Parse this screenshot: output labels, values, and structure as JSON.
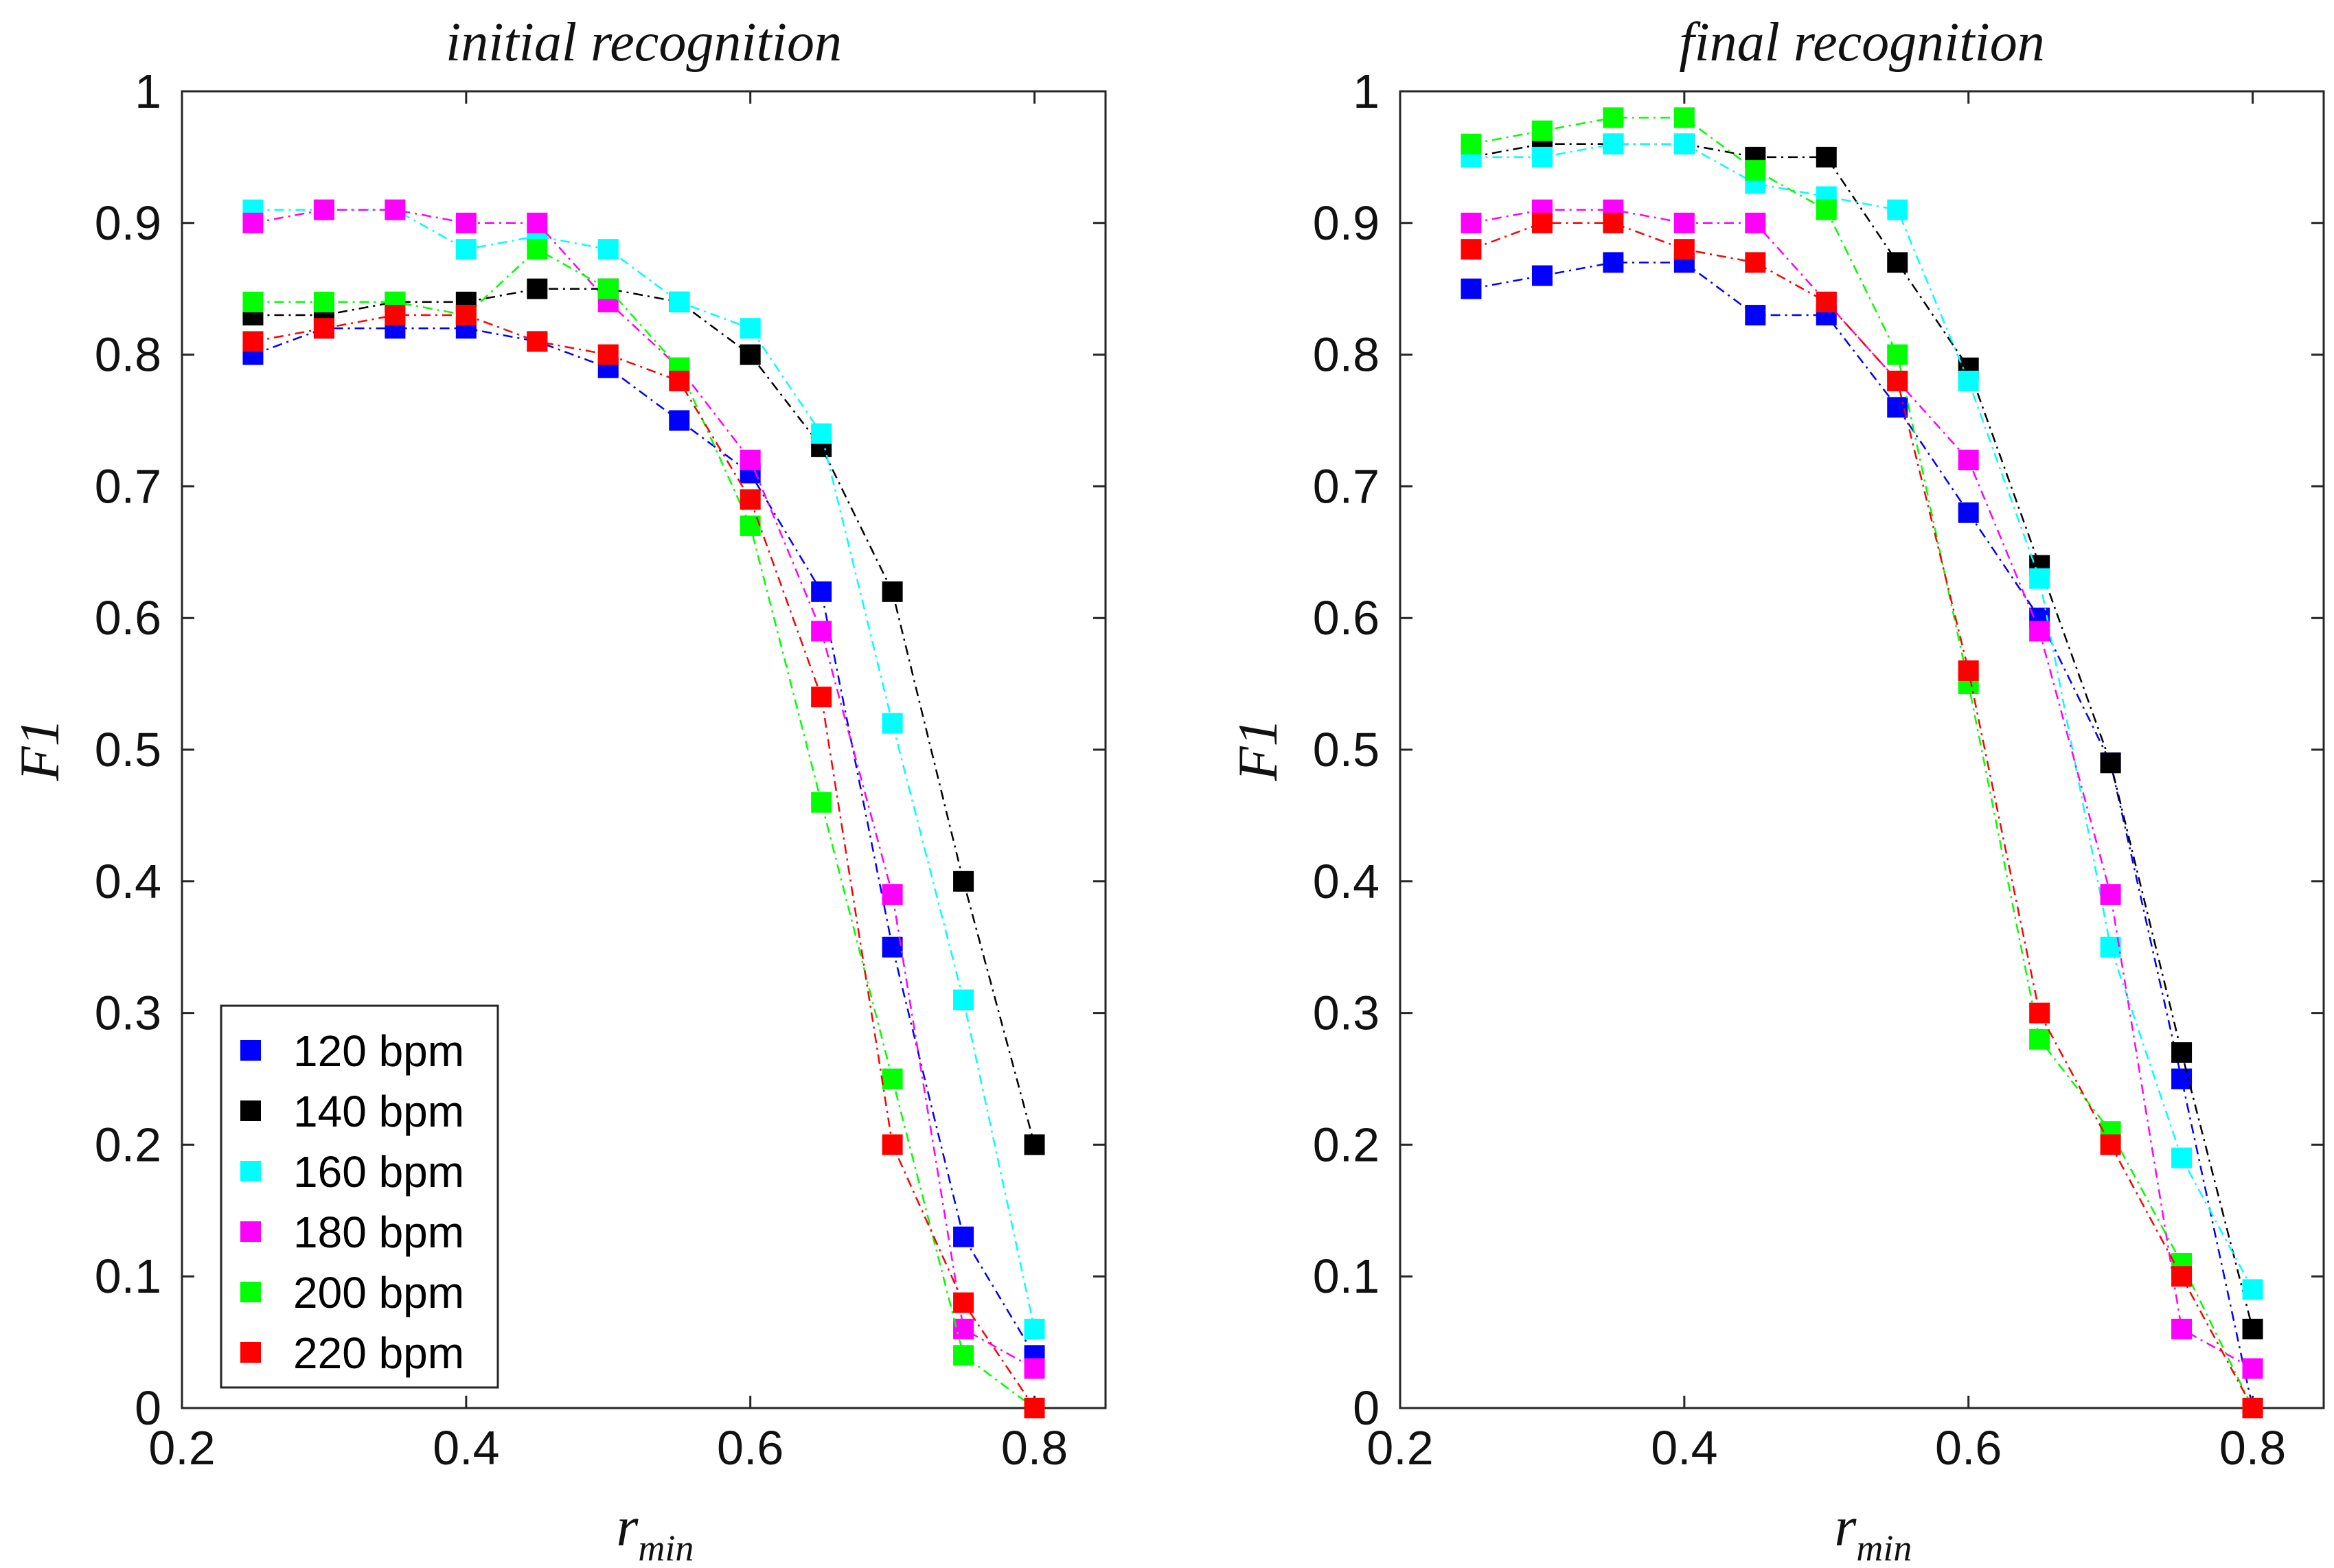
{
  "chart_data": [
    {
      "type": "line",
      "title": "initial recognition",
      "xlabel": "r",
      "xlabel_sub": "min",
      "ylabel": "F1",
      "xlim": [
        0.2,
        0.85
      ],
      "ylim": [
        0,
        1
      ],
      "xticks": [
        "0.2",
        "0.4",
        "0.6",
        "0.8"
      ],
      "yticks": [
        "0",
        "0.1",
        "0.2",
        "0.3",
        "0.4",
        "0.5",
        "0.6",
        "0.7",
        "0.8",
        "0.9",
        "1"
      ],
      "grid": false,
      "legend": "bottom-left",
      "x": [
        0.25,
        0.3,
        0.35,
        0.4,
        0.45,
        0.5,
        0.55,
        0.6,
        0.65,
        0.7,
        0.75,
        0.8
      ],
      "series": [
        {
          "name": "120 bpm",
          "color": "#0000ff",
          "values": [
            0.8,
            0.82,
            0.82,
            0.82,
            0.81,
            0.79,
            0.75,
            0.71,
            0.62,
            0.35,
            0.13,
            0.04
          ]
        },
        {
          "name": "140 bpm",
          "color": "#000000",
          "values": [
            0.83,
            0.83,
            0.84,
            0.84,
            0.85,
            0.85,
            0.84,
            0.8,
            0.73,
            0.62,
            0.4,
            0.2
          ]
        },
        {
          "name": "160 bpm",
          "color": "#00ffff",
          "values": [
            0.91,
            0.91,
            0.91,
            0.88,
            0.89,
            0.88,
            0.84,
            0.82,
            0.74,
            0.52,
            0.31,
            0.06
          ]
        },
        {
          "name": "180 bpm",
          "color": "#ff00ff",
          "values": [
            0.9,
            0.91,
            0.91,
            0.9,
            0.9,
            0.84,
            0.79,
            0.72,
            0.59,
            0.39,
            0.06,
            0.03
          ]
        },
        {
          "name": "200 bpm",
          "color": "#00ff00",
          "values": [
            0.84,
            0.84,
            0.84,
            0.83,
            0.88,
            0.85,
            0.79,
            0.67,
            0.46,
            0.25,
            0.04,
            0.0
          ]
        },
        {
          "name": "220 bpm",
          "color": "#ff0000",
          "values": [
            0.81,
            0.82,
            0.83,
            0.83,
            0.81,
            0.8,
            0.78,
            0.69,
            0.54,
            0.2,
            0.08,
            0.0
          ]
        }
      ]
    },
    {
      "type": "line",
      "title": "final recognition",
      "xlabel": "r",
      "xlabel_sub": "min",
      "ylabel": "F1",
      "xlim": [
        0.2,
        0.85
      ],
      "ylim": [
        0,
        1
      ],
      "xticks": [
        "0.2",
        "0.4",
        "0.6",
        "0.8"
      ],
      "yticks": [
        "0",
        "0.1",
        "0.2",
        "0.3",
        "0.4",
        "0.5",
        "0.6",
        "0.7",
        "0.8",
        "0.9",
        "1"
      ],
      "grid": false,
      "legend": "",
      "x": [
        0.25,
        0.3,
        0.35,
        0.4,
        0.45,
        0.5,
        0.55,
        0.6,
        0.65,
        0.7,
        0.75,
        0.8
      ],
      "series": [
        {
          "name": "120 bpm",
          "color": "#0000ff",
          "values": [
            0.85,
            0.86,
            0.87,
            0.87,
            0.83,
            0.83,
            0.76,
            0.68,
            0.6,
            0.49,
            0.25,
            0.0
          ]
        },
        {
          "name": "140 bpm",
          "color": "#000000",
          "values": [
            0.95,
            0.96,
            0.96,
            0.96,
            0.95,
            0.95,
            0.87,
            0.79,
            0.64,
            0.49,
            0.27,
            0.06
          ]
        },
        {
          "name": "160 bpm",
          "color": "#00ffff",
          "values": [
            0.95,
            0.95,
            0.96,
            0.96,
            0.93,
            0.92,
            0.91,
            0.78,
            0.63,
            0.35,
            0.19,
            0.09
          ]
        },
        {
          "name": "180 bpm",
          "color": "#ff00ff",
          "values": [
            0.9,
            0.91,
            0.91,
            0.9,
            0.9,
            0.84,
            0.78,
            0.72,
            0.59,
            0.39,
            0.06,
            0.03
          ]
        },
        {
          "name": "200 bpm",
          "color": "#00ff00",
          "values": [
            0.96,
            0.97,
            0.98,
            0.98,
            0.94,
            0.91,
            0.8,
            0.55,
            0.28,
            0.21,
            0.11,
            0.0
          ]
        },
        {
          "name": "220 bpm",
          "color": "#ff0000",
          "values": [
            0.88,
            0.9,
            0.9,
            0.88,
            0.87,
            0.84,
            0.78,
            0.56,
            0.3,
            0.2,
            0.1,
            0.0
          ]
        }
      ]
    }
  ]
}
